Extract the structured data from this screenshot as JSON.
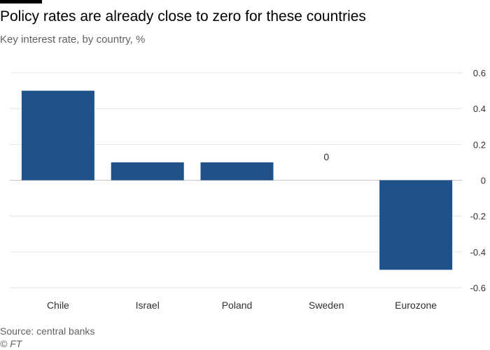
{
  "title": "Policy rates are already close to zero for these countries",
  "subtitle": "Key interest rate, by country, %",
  "source": "Source: central banks",
  "copyright": "© FT",
  "colors": {
    "bar": "#1f5289",
    "grid": "#e6e3df",
    "text": "#33302e",
    "muted": "#66605c"
  },
  "chart_data": {
    "type": "bar",
    "title": "Policy rates are already close to zero for these countries",
    "subtitle": "Key interest rate, by country, %",
    "categories": [
      "Chile",
      "Israel",
      "Poland",
      "Sweden",
      "Eurozone"
    ],
    "values": [
      0.5,
      0.1,
      0.1,
      0,
      -0.5
    ],
    "ylim": [
      -0.6,
      0.6
    ],
    "yticks": [
      0.6,
      0.4,
      0.2,
      0,
      -0.2,
      -0.4,
      -0.6
    ],
    "ytick_labels": [
      "0.6",
      "0.4",
      "0.2",
      "0",
      "-0.2",
      "-0.4",
      "-0.6"
    ],
    "annotations": [
      {
        "category": "Sweden",
        "text": "0"
      }
    ],
    "xlabel": "",
    "ylabel": "",
    "y_axis_side": "right",
    "grid": true
  }
}
